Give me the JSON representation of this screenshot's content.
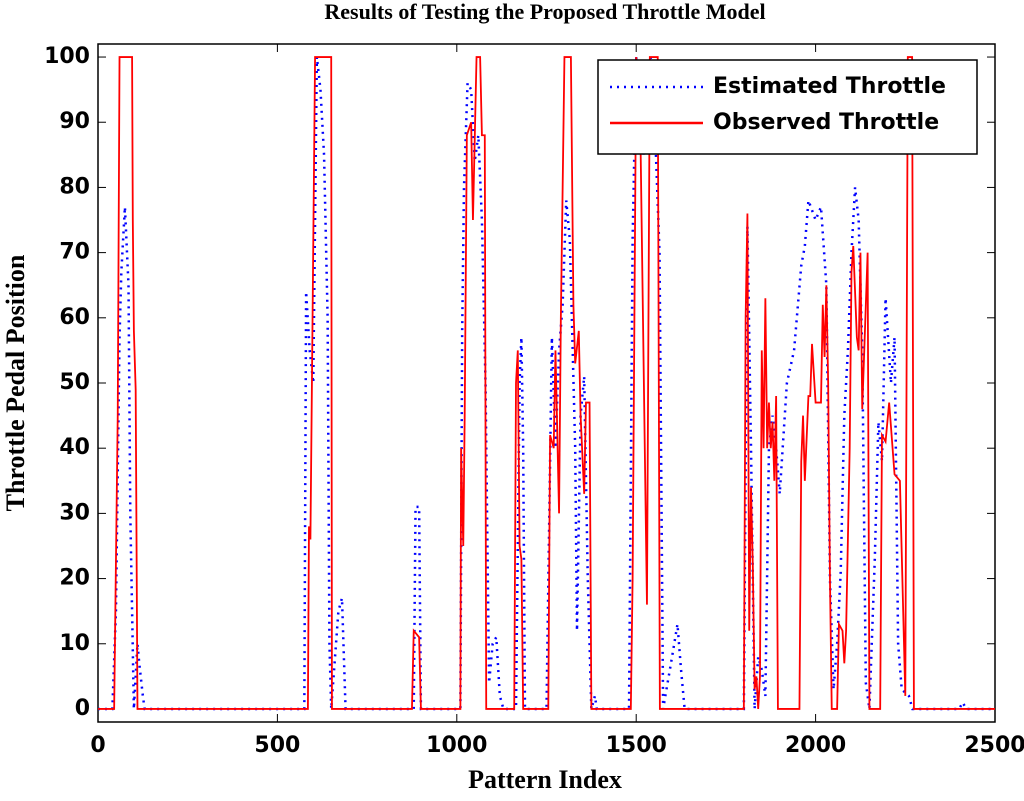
{
  "chart_data": {
    "type": "line",
    "title": "Results of Testing the Proposed Throttle Model",
    "x_label": "Pattern Index",
    "y_label": "Throttle Pedal Position",
    "legend": "upper right",
    "xlim": [
      0,
      2500
    ],
    "xticks": [
      0,
      500,
      1000,
      1500,
      2000,
      2500
    ],
    "ylim": [
      -2,
      102
    ],
    "yticks": [
      0,
      10,
      20,
      30,
      40,
      50,
      60,
      70,
      80,
      90,
      100
    ],
    "series": [
      {
        "name": "Estimated Throttle",
        "color": "#0000ff",
        "style": "dotted",
        "x": [
          0,
          40,
          50,
          60,
          65,
          75,
          85,
          90,
          100,
          110,
          115,
          125,
          130,
          575,
          580,
          590,
          600,
          610,
          620,
          630,
          640,
          645,
          650,
          670,
          680,
          690,
          880,
          885,
          895,
          900,
          1010,
          1015,
          1020,
          1030,
          1040,
          1050,
          1060,
          1070,
          1080,
          1090,
          1100,
          1110,
          1120,
          1130,
          1165,
          1175,
          1180,
          1185,
          1190,
          1250,
          1265,
          1275,
          1285,
          1295,
          1305,
          1315,
          1330,
          1335,
          1345,
          1355,
          1365,
          1375,
          1385,
          1390,
          1480,
          1490,
          1500,
          1510,
          1520,
          1540,
          1555,
          1565,
          1575,
          1600,
          1615,
          1625,
          1635,
          1800,
          1810,
          1820,
          1830,
          1840,
          1850,
          1860,
          1870,
          1880,
          1890,
          1900,
          1920,
          1940,
          1960,
          1970,
          1980,
          2000,
          2015,
          2030,
          2040,
          2050,
          2060,
          2070,
          2080,
          2090,
          2100,
          2110,
          2120,
          2130,
          2140,
          2150,
          2165,
          2175,
          2185,
          2195,
          2210,
          2220,
          2230,
          2240,
          2260,
          2270,
          2400,
          2410,
          2420,
          2500
        ],
        "values": [
          0,
          0,
          15,
          57,
          67,
          77,
          65,
          30,
          0,
          10,
          7,
          2,
          0,
          0,
          64,
          55,
          50,
          100,
          95,
          85,
          60,
          10,
          0,
          15,
          17,
          0,
          0,
          31,
          31,
          0,
          0,
          58,
          80,
          96,
          95,
          84,
          88,
          75,
          50,
          4,
          10,
          11,
          2,
          0,
          0,
          50,
          57,
          40,
          0,
          0,
          57,
          40,
          55,
          62,
          78,
          72,
          40,
          12,
          45,
          51,
          20,
          0,
          2,
          0,
          0,
          72,
          100,
          90,
          85,
          100,
          85,
          70,
          0,
          8,
          13,
          6,
          0,
          0,
          74,
          40,
          0,
          8,
          6,
          2,
          40,
          45,
          40,
          33,
          50,
          55,
          68,
          71,
          78,
          75,
          77,
          65,
          20,
          3,
          10,
          21,
          45,
          55,
          70,
          80,
          75,
          55,
          4,
          0,
          23,
          44,
          38,
          63,
          50,
          57,
          10,
          3,
          2,
          0,
          0,
          1,
          0,
          0
        ]
      },
      {
        "name": "Observed Throttle",
        "color": "#ff0000",
        "style": "solid",
        "x": [
          0,
          45,
          55,
          60,
          95,
          97,
          100,
          105,
          110,
          585,
          588,
          592,
          598,
          605,
          650,
          652,
          875,
          880,
          895,
          900,
          1010,
          1012,
          1018,
          1022,
          1028,
          1040,
          1045,
          1055,
          1065,
          1070,
          1078,
          1082,
          1160,
          1165,
          1170,
          1175,
          1180,
          1185,
          1190,
          1255,
          1260,
          1270,
          1275,
          1285,
          1290,
          1295,
          1300,
          1318,
          1325,
          1330,
          1340,
          1345,
          1355,
          1360,
          1370,
          1375,
          1485,
          1490,
          1500,
          1510,
          1530,
          1538,
          1560,
          1566,
          1800,
          1805,
          1810,
          1815,
          1820,
          1825,
          1830,
          1835,
          1840,
          1845,
          1850,
          1855,
          1860,
          1865,
          1870,
          1875,
          1880,
          1885,
          1890,
          1895,
          1955,
          1960,
          1965,
          1970,
          1980,
          1985,
          1990,
          2000,
          2010,
          2015,
          2020,
          2025,
          2030,
          2035,
          2040,
          2045,
          2060,
          2065,
          2075,
          2080,
          2085,
          2095,
          2100,
          2105,
          2115,
          2120,
          2125,
          2130,
          2145,
          2150,
          2180,
          2185,
          2195,
          2205,
          2220,
          2235,
          2250,
          2257,
          2269,
          2274,
          2500
        ],
        "values": [
          0,
          0,
          45,
          100,
          100,
          75,
          58,
          49,
          0,
          0,
          28,
          26,
          60,
          100,
          100,
          0,
          0,
          12,
          11,
          0,
          0,
          40,
          25,
          45,
          88,
          90,
          75,
          100,
          100,
          88,
          88,
          0,
          0,
          50,
          55,
          25,
          23,
          0,
          0,
          0,
          42,
          40,
          55,
          30,
          60,
          80,
          100,
          100,
          62,
          53,
          58,
          45,
          33,
          47,
          47,
          0,
          0,
          20,
          100,
          95,
          16,
          100,
          100,
          0,
          0,
          60,
          76,
          12,
          34,
          22,
          3,
          5,
          0,
          5,
          55,
          40,
          63,
          40,
          47,
          40,
          44,
          35,
          48,
          0,
          0,
          38,
          45,
          35,
          48,
          48,
          56,
          47,
          47,
          47,
          62,
          54,
          65,
          50,
          20,
          0,
          0,
          13,
          12,
          7,
          12,
          40,
          67,
          71,
          57,
          55,
          70,
          46,
          70,
          0,
          0,
          42,
          41,
          47,
          36,
          35,
          2,
          100,
          100,
          0,
          0
        ]
      }
    ]
  }
}
